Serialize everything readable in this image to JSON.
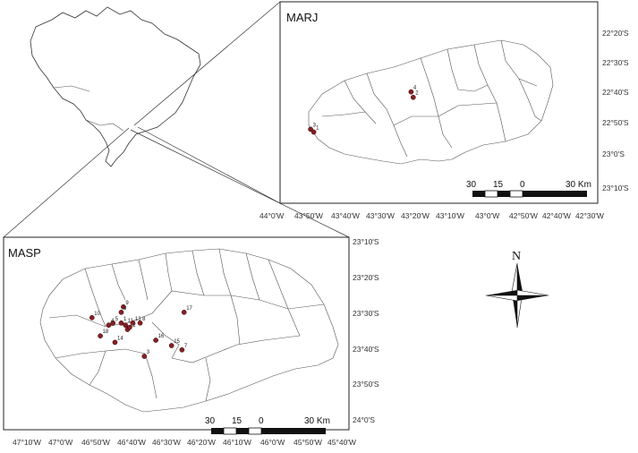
{
  "marj_inset": {
    "title": "MARJ",
    "lat_labels": [
      "22°20'S",
      "22°30'S",
      "22°40'S",
      "22°50'S",
      "23°0'S",
      "23°10'S"
    ],
    "lon_labels": [
      "44°0'W",
      "43°50'W",
      "43°40'W",
      "43°30'W",
      "43°20'W",
      "43°10'W",
      "43°0'W",
      "42°50'W",
      "42°40'W",
      "42°30'W"
    ],
    "scale_labels": [
      "30",
      "15",
      "0",
      "30 Km"
    ],
    "sites": [
      {
        "label": "4",
        "lon": -43.34,
        "lat": -22.655
      },
      {
        "label": "2",
        "lon": -43.33,
        "lat": -22.685
      },
      {
        "label": "3",
        "lon": -43.82,
        "lat": -22.86
      },
      {
        "label": "1",
        "lon": -43.805,
        "lat": -22.875
      }
    ]
  },
  "masp_inset": {
    "title": "MASP",
    "lat_labels": [
      "23°10'S",
      "23°20'S",
      "23°30'S",
      "23°40'S",
      "23°50'S",
      "24°0'S"
    ],
    "lon_labels": [
      "47°10'W",
      "47°0'W",
      "46°50'W",
      "46°40'W",
      "46°30'W",
      "46°20'W",
      "46°10'W",
      "46°0'W",
      "45°50'W",
      "45°40'W"
    ],
    "scale_labels": [
      "30",
      "15",
      "0",
      "30 Km"
    ],
    "sites": [
      {
        "label": "10",
        "lon": -46.86,
        "lat": -23.52
      },
      {
        "label": "9",
        "lon": -46.71,
        "lat": -23.47
      },
      {
        "label": "6",
        "lon": -46.72,
        "lat": -23.495
      },
      {
        "label": "5",
        "lon": -46.76,
        "lat": -23.545
      },
      {
        "label": "4",
        "lon": -46.78,
        "lat": -23.555
      },
      {
        "label": "11",
        "lon": -46.7,
        "lat": -23.555
      },
      {
        "label": "12",
        "lon": -46.69,
        "lat": -23.575
      },
      {
        "label": "1",
        "lon": -46.72,
        "lat": -23.545
      },
      {
        "label": "2",
        "lon": -46.68,
        "lat": -23.565
      },
      {
        "label": "13",
        "lon": -46.665,
        "lat": -23.545
      },
      {
        "label": "8",
        "lon": -46.63,
        "lat": -23.545
      },
      {
        "label": "18",
        "lon": -46.82,
        "lat": -23.605
      },
      {
        "label": "14",
        "lon": -46.75,
        "lat": -23.635
      },
      {
        "label": "17",
        "lon": -46.42,
        "lat": -23.495
      },
      {
        "label": "16",
        "lon": -46.555,
        "lat": -23.625
      },
      {
        "label": "15",
        "lon": -46.48,
        "lat": -23.65
      },
      {
        "label": "7",
        "lon": -46.43,
        "lat": -23.67
      },
      {
        "label": "3",
        "lon": -46.61,
        "lat": -23.7
      }
    ]
  },
  "north_arrow": {
    "label": "N"
  }
}
